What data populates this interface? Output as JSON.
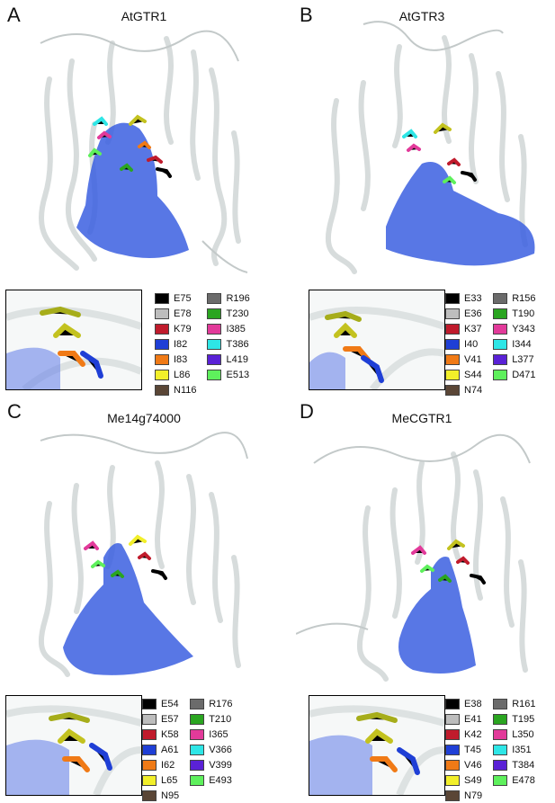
{
  "panels": [
    {
      "letter": "A",
      "title": "AtGTR1",
      "legend": [
        {
          "label": "E75",
          "color": "#000000"
        },
        {
          "label": "R196",
          "color": "#6b6b6b"
        },
        {
          "label": "E78",
          "color": "#bdbdbd"
        },
        {
          "label": "T230",
          "color": "#2aa520"
        },
        {
          "label": "K79",
          "color": "#c01b2c"
        },
        {
          "label": "I385",
          "color": "#e23a9a"
        },
        {
          "label": "I82",
          "color": "#1f3fd6"
        },
        {
          "label": "T386",
          "color": "#2ee6e6"
        },
        {
          "label": "I83",
          "color": "#f07a16"
        },
        {
          "label": "L419",
          "color": "#5a21d6"
        },
        {
          "label": "L86",
          "color": "#f2ef2a"
        },
        {
          "label": "E513",
          "color": "#5ef05c"
        },
        {
          "label": "N116",
          "color": "#5a4636"
        }
      ]
    },
    {
      "letter": "B",
      "title": "AtGTR3",
      "legend": [
        {
          "label": "E33",
          "color": "#000000"
        },
        {
          "label": "R156",
          "color": "#6b6b6b"
        },
        {
          "label": "E36",
          "color": "#bdbdbd"
        },
        {
          "label": "T190",
          "color": "#2aa520"
        },
        {
          "label": "K37",
          "color": "#c01b2c"
        },
        {
          "label": "Y343",
          "color": "#e23a9a"
        },
        {
          "label": "I40",
          "color": "#1f3fd6"
        },
        {
          "label": "I344",
          "color": "#2ee6e6"
        },
        {
          "label": "V41",
          "color": "#f07a16"
        },
        {
          "label": "L377",
          "color": "#5a21d6"
        },
        {
          "label": "S44",
          "color": "#f2ef2a"
        },
        {
          "label": "D471",
          "color": "#5ef05c"
        },
        {
          "label": "N74",
          "color": "#5a4636"
        }
      ]
    },
    {
      "letter": "C",
      "title": "Me14g74000",
      "legend": [
        {
          "label": "E54",
          "color": "#000000"
        },
        {
          "label": "R176",
          "color": "#6b6b6b"
        },
        {
          "label": "E57",
          "color": "#bdbdbd"
        },
        {
          "label": "T210",
          "color": "#2aa520"
        },
        {
          "label": "K58",
          "color": "#c01b2c"
        },
        {
          "label": "I365",
          "color": "#e23a9a"
        },
        {
          "label": "A61",
          "color": "#1f3fd6"
        },
        {
          "label": "V366",
          "color": "#2ee6e6"
        },
        {
          "label": "I62",
          "color": "#f07a16"
        },
        {
          "label": "V399",
          "color": "#5a21d6"
        },
        {
          "label": "L65",
          "color": "#f2ef2a"
        },
        {
          "label": "E493",
          "color": "#5ef05c"
        },
        {
          "label": "N95",
          "color": "#5a4636"
        }
      ]
    },
    {
      "letter": "D",
      "title": "MeCGTR1",
      "legend": [
        {
          "label": "E38",
          "color": "#000000"
        },
        {
          "label": "R161",
          "color": "#6b6b6b"
        },
        {
          "label": "E41",
          "color": "#bdbdbd"
        },
        {
          "label": "T195",
          "color": "#2aa520"
        },
        {
          "label": "K42",
          "color": "#c01b2c"
        },
        {
          "label": "L350",
          "color": "#e23a9a"
        },
        {
          "label": "T45",
          "color": "#1f3fd6"
        },
        {
          "label": "I351",
          "color": "#2ee6e6"
        },
        {
          "label": "V46",
          "color": "#f07a16"
        },
        {
          "label": "T384",
          "color": "#5a21d6"
        },
        {
          "label": "S49",
          "color": "#f2ef2a"
        },
        {
          "label": "E478",
          "color": "#5ef05c"
        },
        {
          "label": "N79",
          "color": "#5a4636"
        }
      ]
    }
  ]
}
